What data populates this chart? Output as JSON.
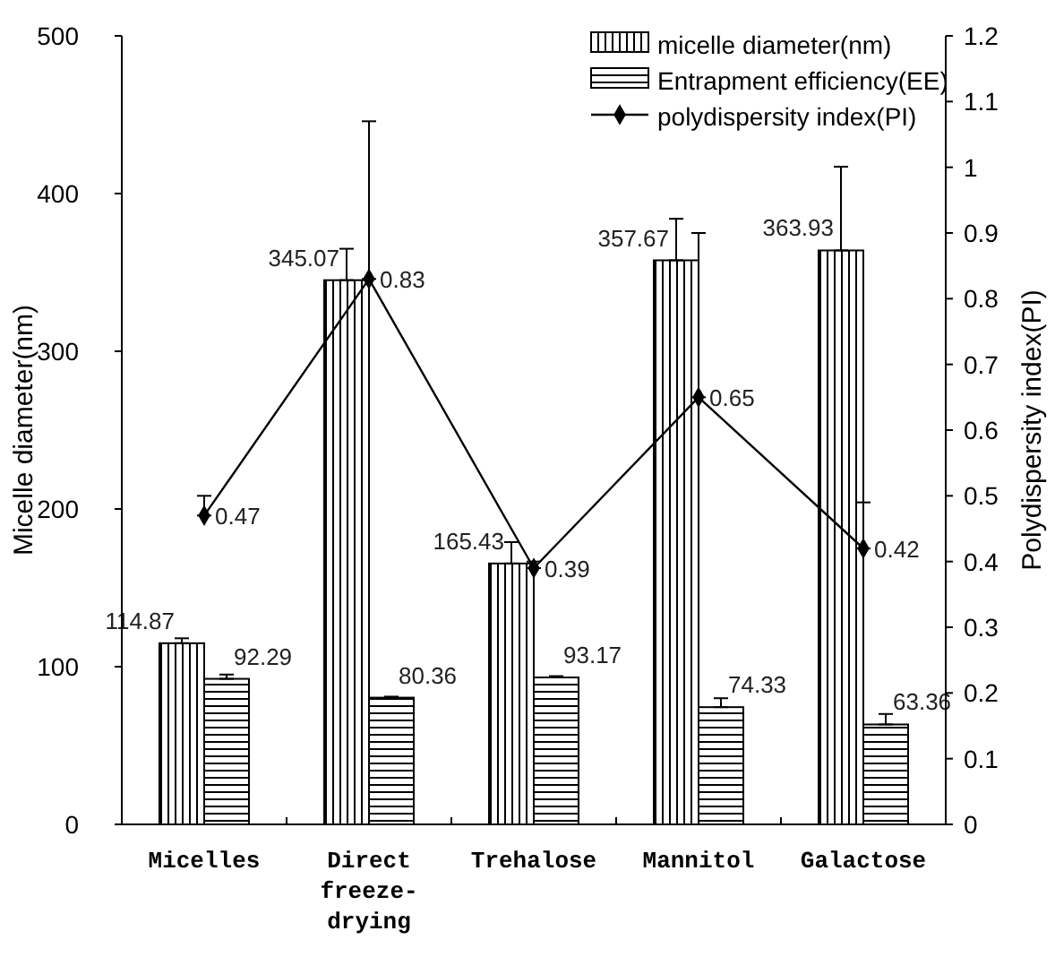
{
  "chart_data": {
    "type": "bar",
    "categories": [
      "Micelles",
      "Direct freeze-drying",
      "Trehalose",
      "Mannitol",
      "Galactose"
    ],
    "ylabel": "Micelle diameter(nm)",
    "y2label": "Polydispersity index(PI)",
    "ylim": [
      0,
      500
    ],
    "yticks": [
      0,
      100,
      200,
      300,
      400,
      500
    ],
    "y2lim": [
      0,
      1.2
    ],
    "y2ticks": [
      0,
      0.1,
      0.2,
      0.3,
      0.4,
      0.5,
      0.6,
      0.7,
      0.8,
      0.9,
      1,
      1.1,
      1.2
    ],
    "series": [
      {
        "name": "micelle diameter(nm)",
        "color": "#000000",
        "values": [
          114.87,
          345.07,
          165.43,
          357.67,
          363.93
        ],
        "errors": [
          [
            114.87,
            118
          ],
          [
            345.07,
            365
          ],
          [
            165.43,
            179
          ],
          [
            357.67,
            384
          ],
          [
            363.93,
            417
          ]
        ]
      },
      {
        "name": "Entrapment efficiency(EE)",
        "color": "#000000",
        "values": [
          92.29,
          80.36,
          93.17,
          74.33,
          63.36
        ],
        "errors": [
          [
            92.29,
            95
          ],
          [
            80.36,
            81
          ],
          [
            93.17,
            94
          ],
          [
            74.33,
            80
          ],
          [
            63.36,
            70
          ]
        ]
      },
      {
        "name": "polydispersity index(PI)",
        "type": "line",
        "axis": "y2",
        "color": "#000000",
        "marker": "diamond",
        "values": [
          0.47,
          0.83,
          0.39,
          0.65,
          0.42
        ],
        "errors": [
          [
            0.47,
            0.5
          ],
          [
            0.83,
            1.07
          ],
          [
            0.39,
            0.4
          ],
          [
            0.65,
            0.9
          ],
          [
            0.42,
            0.49
          ]
        ]
      }
    ],
    "data_labels": true,
    "legend": "top right",
    "grid": false
  }
}
